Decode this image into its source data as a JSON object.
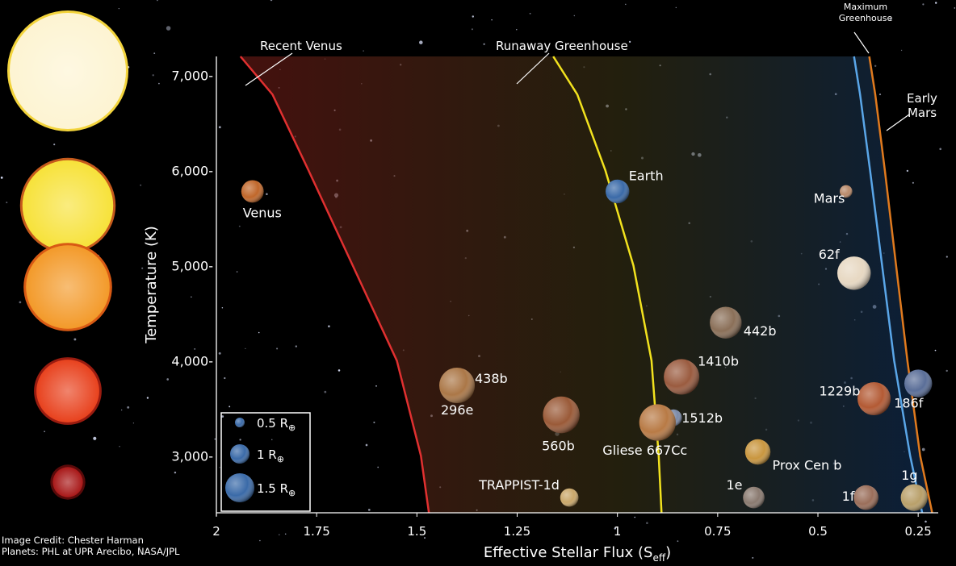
{
  "chart_data": {
    "type": "scatter",
    "title": "",
    "xlabel": "Effective Stellar Flux (S",
    "xlabel_sub": "eff",
    "xlabel_close": ")",
    "ylabel": "Temperature (K)",
    "x_reversed": true,
    "xlim": [
      2.0,
      0.2
    ],
    "ylim": [
      2400,
      7200
    ],
    "x_ticks": [
      {
        "v": 2,
        "label": "2"
      },
      {
        "v": 1.75,
        "label": "1.75"
      },
      {
        "v": 1.5,
        "label": "1.5"
      },
      {
        "v": 1.25,
        "label": "1.25"
      },
      {
        "v": 1,
        "label": "1"
      },
      {
        "v": 0.75,
        "label": "0.75"
      },
      {
        "v": 0.5,
        "label": "0.5"
      },
      {
        "v": 0.25,
        "label": "0.25"
      }
    ],
    "y_ticks": [
      {
        "v": 3000,
        "label": "3,000-"
      },
      {
        "v": 4000,
        "label": "4,000-"
      },
      {
        "v": 5000,
        "label": "5,000-"
      },
      {
        "v": 6000,
        "label": "6,000-"
      },
      {
        "v": 7000,
        "label": "7,000-"
      }
    ],
    "boundaries": [
      {
        "name": "Recent Venus",
        "color": "#e03030",
        "points": [
          [
            1.94,
            7200
          ],
          [
            1.86,
            6800
          ],
          [
            1.77,
            6000
          ],
          [
            1.66,
            5000
          ],
          [
            1.55,
            4000
          ],
          [
            1.49,
            3000
          ],
          [
            1.47,
            2400
          ]
        ]
      },
      {
        "name": "Runaway Greenhouse",
        "color": "#f2e21e",
        "points": [
          [
            1.16,
            7200
          ],
          [
            1.1,
            6800
          ],
          [
            1.03,
            6000
          ],
          [
            0.96,
            5000
          ],
          [
            0.915,
            4000
          ],
          [
            0.897,
            3000
          ],
          [
            0.89,
            2400
          ]
        ]
      },
      {
        "name": "Maximum Greenhouse",
        "color": "#5aa6e8",
        "points": [
          [
            0.41,
            7200
          ],
          [
            0.395,
            6800
          ],
          [
            0.37,
            6000
          ],
          [
            0.34,
            5000
          ],
          [
            0.31,
            4000
          ],
          [
            0.27,
            3000
          ],
          [
            0.24,
            2400
          ]
        ]
      },
      {
        "name": "Early Mars",
        "color": "#e07a1e",
        "points": [
          [
            0.372,
            7200
          ],
          [
            0.357,
            6800
          ],
          [
            0.333,
            6000
          ],
          [
            0.305,
            5000
          ],
          [
            0.277,
            4000
          ],
          [
            0.245,
            3000
          ],
          [
            0.215,
            2400
          ]
        ]
      }
    ],
    "boundary_labels": [
      {
        "lines": [
          "Recent Venus"
        ]
      },
      {
        "lines": [
          "Runaway Greenhouse"
        ]
      },
      {
        "lines": [
          "Maximum",
          "Greenhouse"
        ]
      },
      {
        "lines": [
          "Early",
          "Mars"
        ]
      }
    ],
    "planets": [
      {
        "name": "Venus",
        "x": 1.91,
        "y": 5780,
        "r": 0.95,
        "color": "#c0672a"
      },
      {
        "name": "Earth",
        "x": 1.0,
        "y": 5780,
        "r": 1.0,
        "color": "#3a6aa8"
      },
      {
        "name": "Mars",
        "x": 0.43,
        "y": 5780,
        "r": 0.53,
        "color": "#b98a6a"
      },
      {
        "name": "62f",
        "x": 0.41,
        "y": 4920,
        "r": 1.41,
        "color": "#e7d8c2"
      },
      {
        "name": "442b",
        "x": 0.73,
        "y": 4400,
        "r": 1.34,
        "color": "#8a6f58"
      },
      {
        "name": "1410b",
        "x": 0.84,
        "y": 3830,
        "r": 1.5,
        "color": "#9a5b3f"
      },
      {
        "name": "438b",
        "x": 1.4,
        "y": 3750,
        "r": 1.12,
        "color": "#b07440"
      },
      {
        "name": "296e",
        "x": 1.4,
        "y": 3740,
        "r": 1.5,
        "color": "#ab7747"
      },
      {
        "name": "1229b",
        "x": 0.36,
        "y": 3600,
        "r": 1.4,
        "color": "#b35a34"
      },
      {
        "name": "186f",
        "x": 0.25,
        "y": 3760,
        "r": 1.17,
        "color": "#5a6e98"
      },
      {
        "name": "560b",
        "x": 1.14,
        "y": 3430,
        "r": 1.55,
        "color": "#9a5a38"
      },
      {
        "name": "1512b",
        "x": 0.86,
        "y": 3400,
        "r": 0.7,
        "color": "#7b8aa8"
      },
      {
        "name": "Gliese 667Cc",
        "x": 0.9,
        "y": 3350,
        "r": 1.54,
        "color": "#b87a45"
      },
      {
        "name": "Prox Cen b",
        "x": 0.65,
        "y": 3040,
        "r": 1.07,
        "color": "#c9963f"
      },
      {
        "name": "TRAPPIST-1d",
        "x": 1.12,
        "y": 2560,
        "r": 0.77,
        "color": "#c9a76a"
      },
      {
        "name": "1e",
        "x": 0.66,
        "y": 2560,
        "r": 0.91,
        "color": "#8a7a70"
      },
      {
        "name": "1f",
        "x": 0.38,
        "y": 2560,
        "r": 1.04,
        "color": "#9a6e5a"
      },
      {
        "name": "1g",
        "x": 0.26,
        "y": 2560,
        "r": 1.13,
        "color": "#b9a06a"
      }
    ],
    "planet_label_text": [
      "Venus",
      "Earth",
      "Mars",
      "62f",
      "442b",
      "1410b",
      "438b",
      "296e",
      "1229b",
      "186f",
      "560b",
      "1512b",
      "Gliese 667Cc",
      "Prox Cen b",
      "TRAPPIST-1d",
      "1e",
      "1f",
      "1g"
    ],
    "legend": {
      "items": [
        {
          "size": "0.5 R",
          "sub": "⊕",
          "r": 0.5
        },
        {
          "size": "1 R",
          "sub": "⊕",
          "r": 1.0
        },
        {
          "size": "1.5 R",
          "sub": "⊕",
          "r": 1.5
        }
      ],
      "placement": "bottom-left"
    },
    "stars": [
      {
        "temp": 7000,
        "color": "#fdf4d2",
        "rim": "#f3d43c",
        "rel_size": 1.0
      },
      {
        "temp": 6000,
        "color": "#f7e23a",
        "rim": "#c55a1c",
        "rel_size": 0.78
      },
      {
        "temp": 5000,
        "color": "#f39a2a",
        "rim": "#d85a14",
        "rel_size": 0.72
      },
      {
        "temp": 4000,
        "color": "#e8421e",
        "rim": "#9a1c10",
        "rel_size": 0.54
      },
      {
        "temp": 3000,
        "color": "#a81818",
        "rim": "#5a0a0a",
        "rel_size": 0.26
      }
    ],
    "grid": false,
    "band_colors": [
      "#6b1a16",
      "#3a3416",
      "#10305a"
    ]
  },
  "credit": {
    "line1": "Image Credit: Chester Harman",
    "line2": "Planets:  PHL at UPR Arecibo, NASA/JPL"
  }
}
